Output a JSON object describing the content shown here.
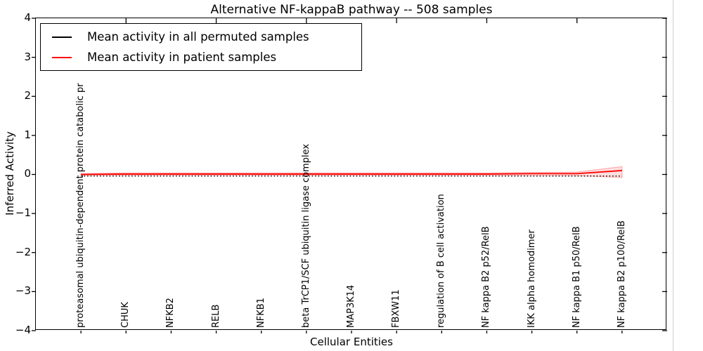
{
  "title": "Alternative NF-kappaB pathway -- 508 samples",
  "xlabel": "Cellular Entities",
  "ylabel": "Inferred Activity",
  "legend": [
    {
      "label": "Mean activity in all permuted samples",
      "color": "#000000"
    },
    {
      "label": "Mean activity in patient samples",
      "color": "#ff0000"
    }
  ],
  "chart_data": {
    "type": "line",
    "title": "Alternative NF-kappaB pathway -- 508 samples",
    "xlabel": "Cellular Entities",
    "ylabel": "Inferred Activity",
    "ylim": [
      -4,
      4
    ],
    "xlim": [
      -1,
      13
    ],
    "yticks": [
      4,
      3,
      2,
      1,
      0,
      -1,
      -2,
      -3,
      -4
    ],
    "ytick_labels": [
      "4",
      "3",
      "2",
      "1",
      "0",
      "−1",
      "−2",
      "−3",
      "−4"
    ],
    "grid": false,
    "legend_position": "upper left",
    "categories": [
      "proteasomal ubiquitin-dependent protein catabolic pr",
      "CHUK",
      "NFKB2",
      "RELB",
      "NFKB1",
      "beta TrCP1/SCF ubiquitin ligase complex",
      "MAP3K14",
      "FBXW11",
      "regulation of B cell activation",
      "NF kappa B2 p52/RelB",
      "IKK alpha homodimer",
      "NF kappa B1 p50/RelB",
      "NF kappa B2 p100/RelB"
    ],
    "top_tick_indices": [
      1,
      3,
      5,
      7,
      9,
      11
    ],
    "series": [
      {
        "name": "Mean activity in all permuted samples",
        "color": "#000000",
        "linestyle": "dotted",
        "values": [
          -0.04,
          -0.04,
          -0.04,
          -0.04,
          -0.04,
          -0.04,
          -0.04,
          -0.04,
          -0.04,
          -0.04,
          -0.04,
          -0.04,
          -0.04
        ]
      },
      {
        "name": "Mean activity in patient samples",
        "color": "#ff0000",
        "linestyle": "solid",
        "values": [
          0.0,
          0.01,
          0.01,
          0.01,
          0.01,
          0.01,
          0.01,
          0.01,
          0.01,
          0.01,
          0.02,
          0.02,
          0.1
        ]
      }
    ],
    "band": {
      "series": "Mean activity in patient samples",
      "color": "#ff0000",
      "opacity": 0.13,
      "upper": [
        0.02,
        0.04,
        0.04,
        0.04,
        0.04,
        0.04,
        0.04,
        0.04,
        0.04,
        0.04,
        0.05,
        0.06,
        0.2
      ],
      "lower": [
        -0.02,
        -0.02,
        -0.02,
        -0.02,
        -0.02,
        -0.02,
        -0.02,
        -0.02,
        -0.02,
        -0.02,
        -0.03,
        -0.03,
        -0.08
      ]
    }
  }
}
